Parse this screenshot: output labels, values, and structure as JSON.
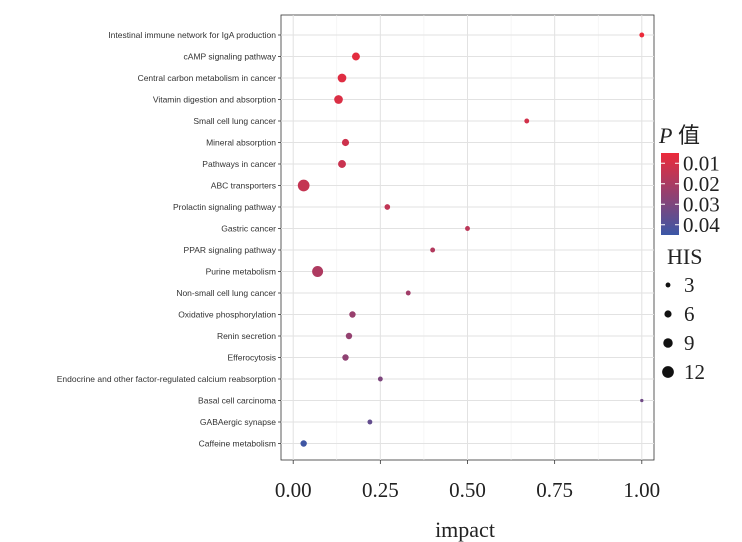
{
  "chart_data": {
    "type": "scatter",
    "xlabel": "impact",
    "ylabel": "",
    "xlim": [
      -0.035,
      1.035
    ],
    "x_ticks": [
      0.0,
      0.25,
      0.5,
      0.75,
      1.0
    ],
    "x_tick_labels": [
      "0.00",
      "0.25",
      "0.50",
      "0.75",
      "1.00"
    ],
    "grid": true,
    "legend_position": "right",
    "color_legend": {
      "title_italic": "P",
      "title_rest": " 值",
      "ticks": [
        "0.01",
        "0.02",
        "0.03",
        "0.04"
      ],
      "low_color": "#ec2a3a",
      "high_color": "#3b57a6"
    },
    "size_legend": {
      "title": "HIS",
      "values": [
        3,
        6,
        9,
        12
      ]
    },
    "categories": [
      "Intestinal immune network for IgA production",
      "cAMP signaling pathway",
      "Central carbon metabolism in cancer",
      "Vitamin digestion and absorption",
      "Small cell lung cancer",
      "Mineral absorption",
      "Pathways in cancer",
      "ABC transporters",
      "Prolactin signaling pathway",
      "Gastric cancer",
      "PPAR signaling pathway",
      "Purine metabolism",
      "Non-small cell lung cancer",
      "Oxidative phosphorylation",
      "Renin secretion",
      "Efferocytosis",
      "Endocrine and other factor-regulated calcium reabsorption",
      "Basal cell carcinoma",
      "GABAergic synapse",
      "Caffeine metabolism"
    ],
    "points": [
      {
        "category": "Intestinal immune network for IgA production",
        "impact": 1.0,
        "p": 0.005,
        "his": 3
      },
      {
        "category": "cAMP signaling pathway",
        "impact": 0.18,
        "p": 0.007,
        "his": 7
      },
      {
        "category": "Central carbon metabolism in cancer",
        "impact": 0.14,
        "p": 0.008,
        "his": 8
      },
      {
        "category": "Vitamin digestion and absorption",
        "impact": 0.13,
        "p": 0.009,
        "his": 8
      },
      {
        "category": "Small cell lung cancer",
        "impact": 0.67,
        "p": 0.011,
        "his": 3
      },
      {
        "category": "Mineral absorption",
        "impact": 0.15,
        "p": 0.012,
        "his": 6
      },
      {
        "category": "Pathways in cancer",
        "impact": 0.14,
        "p": 0.013,
        "his": 7
      },
      {
        "category": "ABC transporters",
        "impact": 0.03,
        "p": 0.014,
        "his": 12
      },
      {
        "category": "Prolactin signaling pathway",
        "impact": 0.27,
        "p": 0.015,
        "his": 4
      },
      {
        "category": "Gastric cancer",
        "impact": 0.5,
        "p": 0.016,
        "his": 3
      },
      {
        "category": "PPAR signaling pathway",
        "impact": 0.4,
        "p": 0.018,
        "his": 3
      },
      {
        "category": "Purine metabolism",
        "impact": 0.07,
        "p": 0.019,
        "his": 11
      },
      {
        "category": "Non-small cell lung cancer",
        "impact": 0.33,
        "p": 0.022,
        "his": 3
      },
      {
        "category": "Oxidative phosphorylation",
        "impact": 0.17,
        "p": 0.024,
        "his": 5
      },
      {
        "category": "Renin secretion",
        "impact": 0.16,
        "p": 0.025,
        "his": 5
      },
      {
        "category": "Efferocytosis",
        "impact": 0.15,
        "p": 0.026,
        "his": 5
      },
      {
        "category": "Endocrine and other factor-regulated calcium reabsorption",
        "impact": 0.25,
        "p": 0.03,
        "his": 3
      },
      {
        "category": "Basal cell carcinoma",
        "impact": 1.0,
        "p": 0.033,
        "his": 1
      },
      {
        "category": "GABAergic synapse",
        "impact": 0.22,
        "p": 0.036,
        "his": 3
      },
      {
        "category": "Caffeine metabolism",
        "impact": 0.03,
        "p": 0.044,
        "his": 5
      }
    ]
  }
}
